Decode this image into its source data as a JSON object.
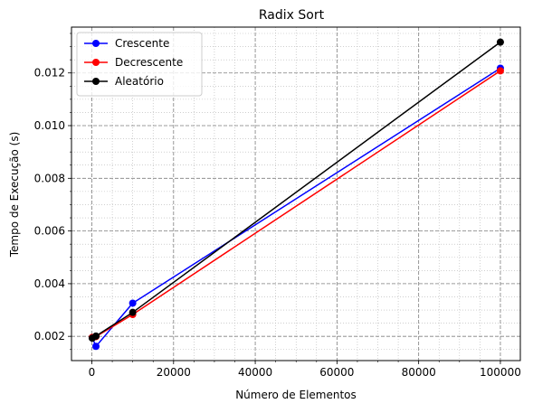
{
  "chart_data": {
    "type": "line",
    "title": "Radix Sort",
    "xlabel": "Número de Elementos",
    "ylabel": "Tempo de Execução (s)",
    "x": [
      100,
      1000,
      10000,
      100000
    ],
    "xlim": [
      -4985,
      104885
    ],
    "ylim": [
      0.00108,
      0.01374
    ],
    "x_ticks": [
      0,
      20000,
      40000,
      60000,
      80000,
      100000
    ],
    "y_ticks": [
      0.002,
      0.004,
      0.006,
      0.008,
      0.01,
      0.012
    ],
    "x_tick_labels": [
      "0",
      "20000",
      "40000",
      "60000",
      "80000",
      "100000"
    ],
    "y_tick_labels": [
      "0.002",
      "0.004",
      "0.006",
      "0.008",
      "0.010",
      "0.012"
    ],
    "grid": true,
    "legend_position": "top-left",
    "series": [
      {
        "name": "Crescente",
        "color": "#0000ff",
        "values": [
          0.00195,
          0.00162,
          0.00326,
          0.01218
        ]
      },
      {
        "name": "Decrescente",
        "color": "#ff0000",
        "values": [
          0.00196,
          0.00199,
          0.00283,
          0.01208
        ]
      },
      {
        "name": "Aleatório",
        "color": "#000000",
        "values": [
          0.00193,
          0.00201,
          0.00291,
          0.01317
        ]
      }
    ]
  }
}
